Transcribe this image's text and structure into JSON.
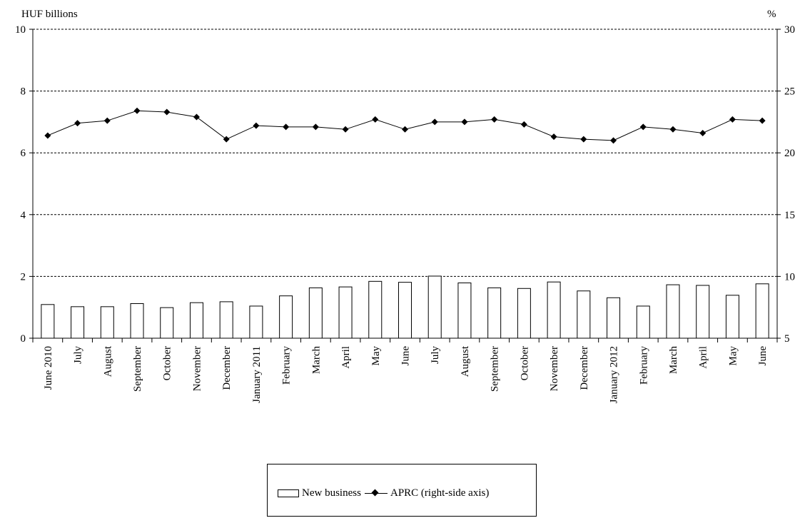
{
  "chart_data": {
    "type": "bar",
    "categories": [
      "June 2010",
      "July",
      "August",
      "September",
      "October",
      "November",
      "December",
      "January 2011",
      "February",
      "March",
      "April",
      "May",
      "June",
      "July",
      "August",
      "September",
      "October",
      "November",
      "December",
      "January 2012",
      "February",
      "March",
      "April",
      "May",
      "June"
    ],
    "series": [
      {
        "name": "New business",
        "type": "bar",
        "axis": "left",
        "values": [
          1.09,
          1.02,
          1.02,
          1.12,
          0.99,
          1.15,
          1.18,
          1.04,
          1.37,
          1.63,
          1.66,
          1.84,
          1.81,
          2.01,
          1.79,
          1.63,
          1.61,
          1.82,
          1.53,
          1.31,
          1.04,
          1.73,
          1.71,
          1.39,
          1.76
        ]
      },
      {
        "name": "APRC (right-side axis)",
        "type": "line",
        "axis": "right",
        "marker": "diamond",
        "values": [
          21.4,
          22.4,
          22.6,
          23.4,
          23.3,
          22.9,
          21.1,
          22.2,
          22.1,
          22.1,
          21.9,
          22.7,
          21.9,
          22.5,
          22.5,
          22.7,
          22.3,
          21.3,
          21.1,
          21.0,
          22.1,
          21.9,
          21.6,
          22.7,
          22.6
        ]
      }
    ],
    "left_axis": {
      "label": "HUF billions",
      "ylim": [
        0,
        10
      ],
      "ticks": [
        "0",
        "2",
        "4",
        "6",
        "8",
        "10"
      ]
    },
    "right_axis": {
      "label": "%",
      "ylim": [
        5,
        30
      ],
      "ticks": [
        "5",
        "10",
        "15",
        "20",
        "25",
        "30"
      ]
    },
    "grid": "horizontal dashed",
    "legend_position": "bottom"
  },
  "legend": {
    "bar_label": "New business",
    "line_label": "APRC (right-side axis)"
  }
}
